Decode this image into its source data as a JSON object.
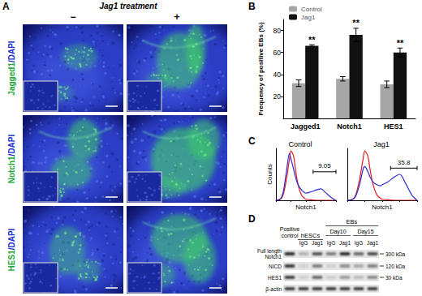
{
  "chart_data": [
    {
      "type": "bar",
      "categories": [
        "Jagged1",
        "Notch1",
        "HES1"
      ],
      "series": [
        {
          "name": "Control",
          "color": "#a6a6a6",
          "values": [
            32,
            36,
            31
          ],
          "errors": [
            3,
            2,
            3
          ]
        },
        {
          "name": "Jag1",
          "color": "#111111",
          "values": [
            66,
            76,
            60
          ],
          "errors": [
            1,
            6,
            4
          ],
          "annotations": [
            "**",
            "**",
            "**"
          ]
        }
      ],
      "ylabel": "Frequency of positive EBs (%)",
      "ylim": [
        0,
        90
      ],
      "yticks": [
        20,
        40,
        60,
        80
      ],
      "legend": "top-left",
      "grid": false
    },
    {
      "type": "line",
      "title": "Control",
      "xlabel": "Notch1",
      "ylabel": "Counts",
      "log": "x",
      "tick_labels": false,
      "x": [
        1,
        2,
        3,
        5,
        8,
        10,
        15,
        20,
        30,
        50,
        80,
        100,
        200,
        500,
        1000,
        2000,
        5000,
        10000
      ],
      "xlim": [
        1,
        10000
      ],
      "xticks": [
        1,
        10,
        100,
        1000,
        10000
      ],
      "ylim": [
        0,
        100
      ],
      "series": [
        {
          "color": "#e41a1c",
          "values": [
            0,
            2,
            10,
            40,
            80,
            95,
            85,
            60,
            30,
            10,
            4,
            2,
            1,
            0,
            0,
            0,
            0,
            0
          ]
        },
        {
          "color": "#2b2bd6",
          "values": [
            0,
            3,
            15,
            55,
            90,
            80,
            60,
            45,
            30,
            20,
            15,
            14,
            16,
            20,
            22,
            15,
            5,
            0
          ]
        }
      ],
      "gate": {
        "x": [
          300,
          10000
        ],
        "y": 55,
        "value": 9.05
      }
    },
    {
      "type": "line",
      "title": "Jag1",
      "xlabel": "Notch1",
      "log": "x",
      "tick_labels": false,
      "x": [
        1,
        2,
        3,
        5,
        8,
        10,
        15,
        20,
        30,
        50,
        80,
        100,
        200,
        500,
        1000,
        2000,
        5000,
        10000
      ],
      "xlim": [
        1,
        10000
      ],
      "xticks": [
        1,
        10,
        100,
        1000,
        10000
      ],
      "ylim": [
        0,
        100
      ],
      "series": [
        {
          "color": "#e41a1c",
          "values": [
            0,
            2,
            10,
            40,
            80,
            95,
            85,
            60,
            30,
            10,
            4,
            2,
            1,
            0,
            0,
            0,
            0,
            0
          ]
        },
        {
          "color": "#2b2bd6",
          "values": [
            0,
            2,
            8,
            30,
            60,
            65,
            55,
            45,
            35,
            30,
            28,
            30,
            35,
            45,
            50,
            35,
            10,
            0
          ]
        }
      ],
      "gate": {
        "x": [
          300,
          10000
        ],
        "y": 62,
        "value": 35.8
      }
    }
  ],
  "figure": {
    "panel_letters": [
      "A",
      "B",
      "C",
      "D"
    ],
    "panel_a": {
      "title": "Jag1 treatment",
      "columns": [
        "−",
        "+"
      ],
      "rows": [
        [
          "Jagged1",
          "/DAPI"
        ],
        [
          "Notch1",
          "/DAPI"
        ],
        [
          "HES1",
          "/DAPI"
        ]
      ]
    },
    "panel_d": {
      "first_lane": [
        "Positive",
        "control"
      ],
      "groups": [
        {
          "label": "hESCs",
          "subgroups": [
            {
              "label": null,
              "lanes": [
                "IgG",
                "Jag1"
              ]
            }
          ]
        },
        {
          "label": "EBs",
          "subgroups": [
            {
              "label": "Day10",
              "lanes": [
                "IgG",
                "Jag1"
              ]
            },
            {
              "label": "Day15",
              "lanes": [
                "IgG",
                "Jag1"
              ]
            }
          ]
        }
      ],
      "rows": [
        {
          "label": [
            "Full length",
            "Notch1"
          ],
          "size": "300 kDa"
        },
        {
          "label": [
            "NICD"
          ],
          "size": "120 kDa"
        },
        {
          "label": [
            "HES1"
          ],
          "size": "30 kDa"
        },
        {
          "label": [
            "β-actin"
          ],
          "size": null
        }
      ]
    }
  }
}
